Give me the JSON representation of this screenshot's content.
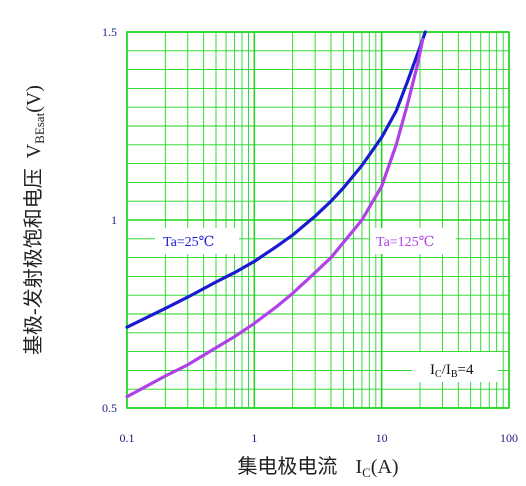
{
  "chart_data": {
    "type": "line",
    "xscale": "log",
    "yscale": "linear",
    "xlim": [
      0.1,
      100
    ],
    "ylim": [
      0.5,
      1.5
    ],
    "xticks": [
      0.1,
      1,
      10,
      100
    ],
    "xtick_labels": [
      "0.1",
      "1",
      "10",
      "100"
    ],
    "yticks": [
      0.5,
      1,
      1.5
    ],
    "ytick_labels": [
      "0.5",
      "1",
      "1.5"
    ],
    "xlabel": {
      "main": "集电极电流",
      "sym": "I",
      "sub": "C",
      "unit": "(A)"
    },
    "ylabel": {
      "main": "基极-发射极饱和电压",
      "sym": "V",
      "sub": "BEsat",
      "unit": "(V)"
    },
    "grid": true,
    "annotation": {
      "p1": "I",
      "s1": "C",
      "p2": "/I",
      "s2": "B",
      "p3": "=4"
    },
    "series": [
      {
        "name": "Ta=25℃",
        "color": "#1a1ad0",
        "x": [
          0.1,
          0.2,
          0.3,
          0.5,
          0.7,
          1,
          1.5,
          2,
          3,
          4,
          5,
          7,
          10,
          13,
          16,
          20,
          22
        ],
        "y": [
          0.715,
          0.765,
          0.795,
          0.835,
          0.86,
          0.89,
          0.93,
          0.96,
          1.01,
          1.05,
          1.085,
          1.145,
          1.22,
          1.29,
          1.37,
          1.46,
          1.5
        ]
      },
      {
        "name": "Ta=125℃",
        "color": "#b040e8",
        "x": [
          0.1,
          0.2,
          0.3,
          0.5,
          0.7,
          1,
          1.5,
          2,
          3,
          4,
          5,
          7,
          10,
          13,
          16,
          19,
          21
        ],
        "y": [
          0.53,
          0.585,
          0.615,
          0.66,
          0.69,
          0.725,
          0.77,
          0.805,
          0.86,
          0.9,
          0.94,
          1.0,
          1.09,
          1.2,
          1.31,
          1.41,
          1.48
        ]
      }
    ]
  }
}
